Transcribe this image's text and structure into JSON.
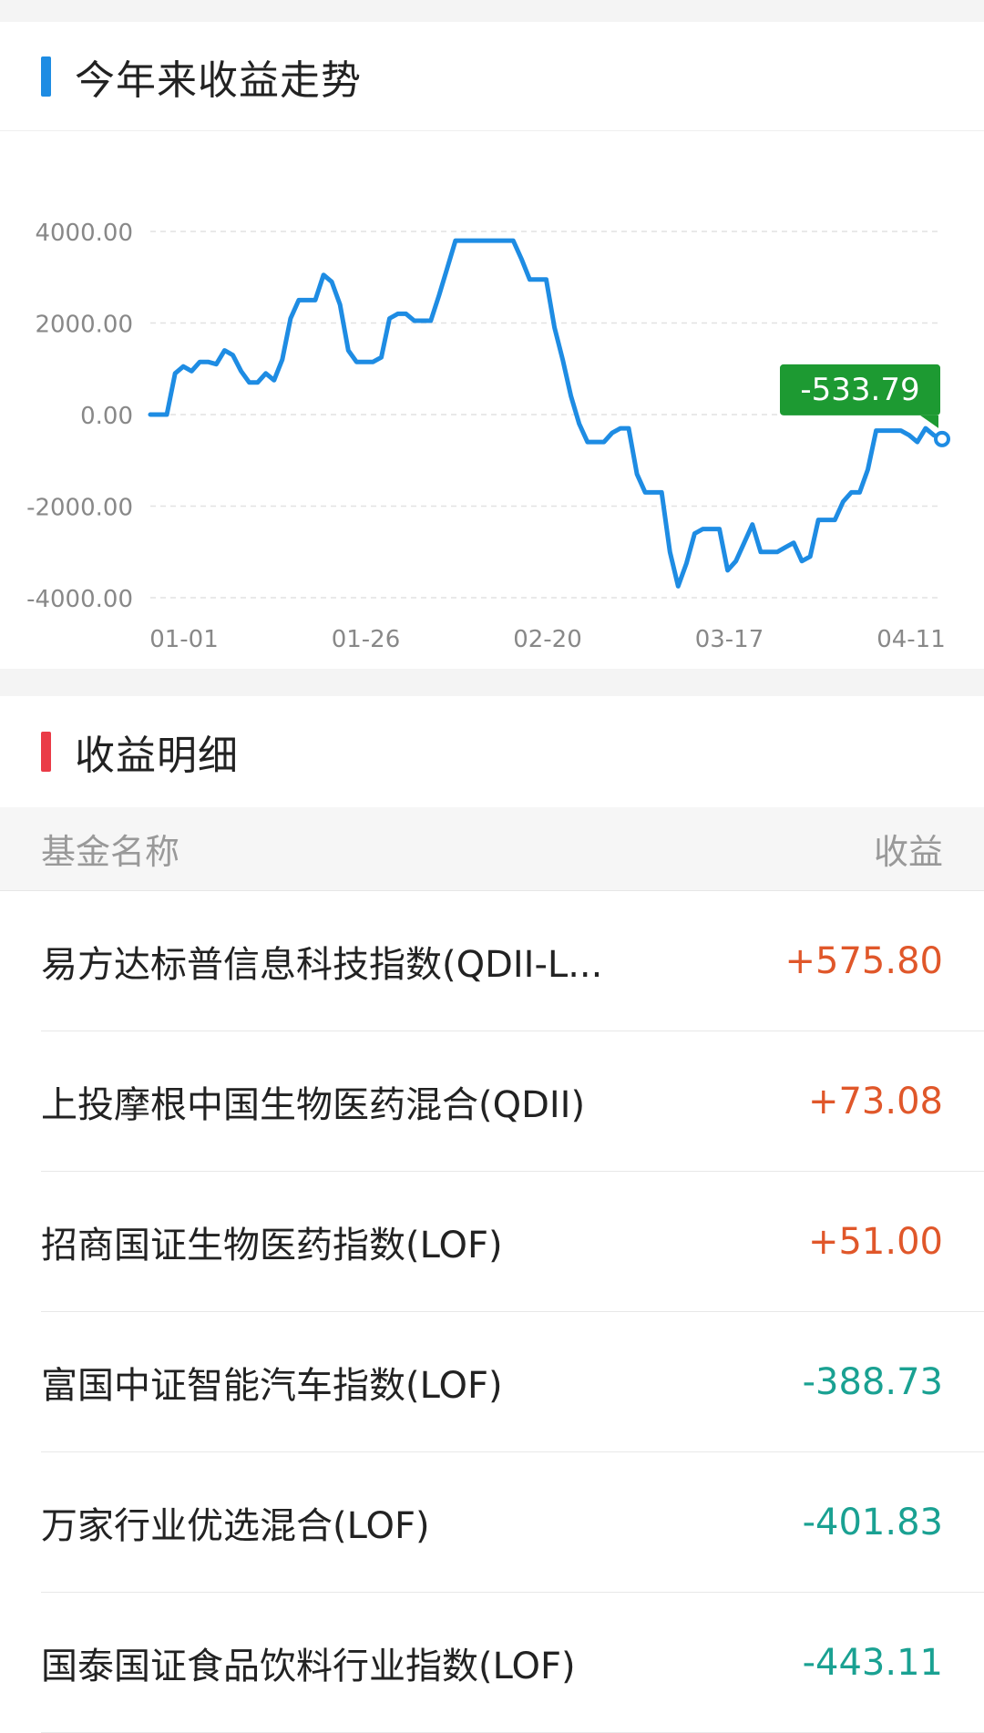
{
  "trend": {
    "title": "今年来收益走势",
    "chart_data": {
      "type": "line",
      "y_ticks": [
        "4000.00",
        "2000.00",
        "0.00",
        "-2000.00",
        "-4000.00"
      ],
      "ylim": [
        -4000,
        4000
      ],
      "x_ticks": [
        "01-01",
        "01-26",
        "02-20",
        "03-17",
        "04-11"
      ],
      "grid": true,
      "last_value_label": "-533.79",
      "last_value": -533.79,
      "series": [
        {
          "values": [
            0,
            0,
            0,
            900,
            1050,
            950,
            1150,
            1150,
            1100,
            1400,
            1300,
            950,
            700,
            700,
            900,
            750,
            1200,
            2100,
            2500,
            2500,
            2500,
            3050,
            2900,
            2400,
            1400,
            1150,
            1150,
            1150,
            1250,
            2100,
            2200,
            2200,
            2050,
            2050,
            2050,
            2600,
            3200,
            3800,
            3800,
            3800,
            3800,
            3800,
            3800,
            3800,
            3800,
            3400,
            2950,
            2950,
            2950,
            1900,
            1200,
            400,
            -200,
            -600,
            -600,
            -600,
            -400,
            -300,
            -300,
            -1300,
            -1700,
            -1700,
            -1700,
            -3000,
            -3750,
            -3250,
            -2600,
            -2500,
            -2500,
            -2500,
            -3400,
            -3200,
            -2800,
            -2400,
            -3000,
            -3000,
            -3000,
            -2900,
            -2800,
            -3200,
            -3100,
            -2300,
            -2300,
            -2300,
            -1900,
            -1700,
            -1700,
            -1200,
            -350,
            -350,
            -350,
            -350,
            -450,
            -600,
            -300,
            -450,
            -534
          ]
        }
      ],
      "colors": {
        "line": "#1e8ce3",
        "label_bg": "#1d9a32"
      }
    }
  },
  "detail": {
    "title": "收益明细",
    "col_name": "基金名称",
    "col_value": "收益",
    "rows": [
      {
        "name": "易方达标普信息科技指数(QDII-L...",
        "value": "+575.80",
        "sign": "pos"
      },
      {
        "name": "上投摩根中国生物医药混合(QDII)",
        "value": "+73.08",
        "sign": "pos"
      },
      {
        "name": "招商国证生物医药指数(LOF)",
        "value": "+51.00",
        "sign": "pos"
      },
      {
        "name": "富国中证智能汽车指数(LOF)",
        "value": "-388.73",
        "sign": "neg"
      },
      {
        "name": "万家行业优选混合(LOF)",
        "value": "-401.83",
        "sign": "neg"
      },
      {
        "name": "国泰国证食品饮料行业指数(LOF)",
        "value": "-443.11",
        "sign": "neg"
      }
    ]
  },
  "colors": {
    "positive": "#e0572a",
    "negative": "#1aa192"
  }
}
